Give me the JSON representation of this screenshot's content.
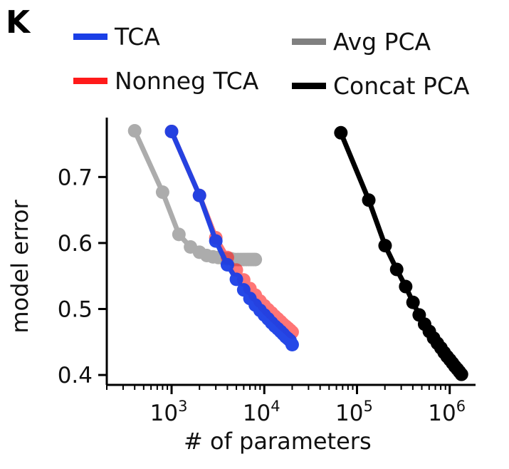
{
  "panel_label": "K",
  "chart_data": {
    "type": "line",
    "xlabel": "# of parameters",
    "ylabel": "model error",
    "xscale": "log",
    "xlim": [
      200,
      1900000
    ],
    "ylim": [
      0.385,
      0.79
    ],
    "x_ticks": [
      {
        "value": 1000,
        "base": "10",
        "exp": "3"
      },
      {
        "value": 10000,
        "base": "10",
        "exp": "4"
      },
      {
        "value": 100000,
        "base": "10",
        "exp": "5"
      },
      {
        "value": 1000000,
        "base": "10",
        "exp": "6"
      }
    ],
    "y_ticks": [
      {
        "value": 0.4,
        "label": "0.4"
      },
      {
        "value": 0.5,
        "label": "0.5"
      },
      {
        "value": 0.6,
        "label": "0.6"
      },
      {
        "value": 0.7,
        "label": "0.7"
      }
    ],
    "legend": {
      "placement": "top"
    },
    "series": [
      {
        "name": "Avg PCA",
        "color": "#808080",
        "opacity": 0.65,
        "x": [
          400,
          800,
          1200,
          1600,
          2000,
          2400,
          2800,
          3200,
          3600,
          4000,
          4400,
          4800,
          5200,
          5600,
          6000,
          6400,
          6800,
          7200,
          7600,
          8000
        ],
        "y": [
          0.77,
          0.677,
          0.613,
          0.594,
          0.586,
          0.581,
          0.579,
          0.578,
          0.577,
          0.576,
          0.576,
          0.575,
          0.575,
          0.575,
          0.575,
          0.575,
          0.575,
          0.575,
          0.575,
          0.575
        ]
      },
      {
        "name": "Nonneg TCA",
        "color": "#ff1a1a",
        "opacity": 0.6,
        "x": [
          1000,
          2000,
          3000,
          4000,
          5000,
          6000,
          7000,
          8000,
          9000,
          10000,
          11000,
          12000,
          13000,
          14000,
          15000,
          16000,
          17000,
          18000,
          19000,
          20000
        ],
        "y": [
          0.769,
          0.672,
          0.608,
          0.578,
          0.559,
          0.544,
          0.531,
          0.521,
          0.512,
          0.505,
          0.499,
          0.494,
          0.489,
          0.485,
          0.481,
          0.477,
          0.474,
          0.471,
          0.468,
          0.465
        ]
      },
      {
        "name": "TCA",
        "color": "#1a3fe6",
        "opacity": 0.95,
        "x": [
          1000,
          2000,
          3000,
          4000,
          5000,
          6000,
          7000,
          8000,
          9000,
          10000,
          11000,
          12000,
          13000,
          14000,
          15000,
          16000,
          17000,
          18000,
          19000,
          20000
        ],
        "y": [
          0.769,
          0.672,
          0.603,
          0.567,
          0.545,
          0.529,
          0.516,
          0.506,
          0.498,
          0.491,
          0.485,
          0.479,
          0.474,
          0.47,
          0.466,
          0.462,
          0.458,
          0.455,
          0.452,
          0.446
        ]
      },
      {
        "name": "Concat PCA",
        "color": "#000000",
        "opacity": 1,
        "x": [
          67000,
          134000,
          201000,
          268000,
          335000,
          402000,
          469000,
          536000,
          603000,
          670000,
          737000,
          804000,
          871000,
          938000,
          1005000,
          1072000,
          1139000,
          1206000,
          1273000,
          1340000
        ],
        "y": [
          0.767,
          0.665,
          0.596,
          0.56,
          0.534,
          0.51,
          0.491,
          0.477,
          0.466,
          0.456,
          0.448,
          0.441,
          0.434,
          0.428,
          0.423,
          0.418,
          0.413,
          0.409,
          0.405,
          0.401
        ]
      }
    ]
  },
  "legend_items": [
    {
      "label": "TCA",
      "color": "#1a3fe6"
    },
    {
      "label": "Nonneg TCA",
      "color": "#ff1a1a"
    },
    {
      "label": "Avg PCA",
      "color": "#808080"
    },
    {
      "label": "Concat PCA",
      "color": "#000000"
    }
  ]
}
